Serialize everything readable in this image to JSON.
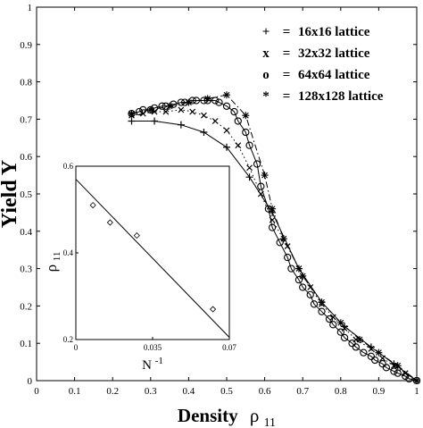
{
  "chart_data": [
    {
      "type": "line",
      "xlabel": "Density",
      "xlabel_sub": "ρ",
      "xlabel_subscript": "11",
      "ylabel": "Yield  Y",
      "xlim": [
        0,
        1
      ],
      "ylim": [
        0,
        1
      ],
      "x_ticks": [
        "0",
        "0.1",
        "0.2",
        "0.3",
        "0.4",
        "0.5",
        "0.6",
        "0.7",
        "0.8",
        "0.9",
        "1"
      ],
      "y_ticks": [
        "0",
        "0.1",
        "0.2",
        "0.3",
        "0.4",
        "0.5",
        "0.6",
        "0.7",
        "0.8",
        "0.9",
        "1"
      ],
      "legend_position": "top-right",
      "series": [
        {
          "name": "16x16 lattice",
          "legend_symbol": "+",
          "legend_eq": "=",
          "marker": "plus",
          "line": "solid",
          "x": [
            0.25,
            0.31,
            0.38,
            0.44,
            0.5,
            0.56,
            0.62,
            0.69,
            0.75,
            0.81,
            0.88,
            0.94,
            1.0
          ],
          "y": [
            0.695,
            0.695,
            0.685,
            0.665,
            0.625,
            0.545,
            0.45,
            0.3,
            0.21,
            0.145,
            0.09,
            0.045,
            0.0
          ]
        },
        {
          "name": "32x32 lattice",
          "legend_symbol": "x",
          "legend_eq": "=",
          "marker": "x",
          "line": "dotted",
          "x": [
            0.25,
            0.28,
            0.31,
            0.34,
            0.38,
            0.41,
            0.44,
            0.47,
            0.5,
            0.53,
            0.56,
            0.59,
            0.62,
            0.66,
            0.69,
            0.72,
            0.75,
            0.78,
            0.81,
            0.84,
            0.88,
            0.91,
            0.94,
            0.97,
            1.0
          ],
          "y": [
            0.71,
            0.715,
            0.72,
            0.72,
            0.725,
            0.72,
            0.71,
            0.695,
            0.67,
            0.63,
            0.57,
            0.5,
            0.43,
            0.36,
            0.3,
            0.25,
            0.205,
            0.17,
            0.14,
            0.11,
            0.085,
            0.06,
            0.04,
            0.02,
            0.0
          ]
        },
        {
          "name": "64x64 lattice",
          "legend_symbol": "o",
          "legend_eq": "=",
          "marker": "circle",
          "line": "solid",
          "x": [
            0.25,
            0.27,
            0.28,
            0.3,
            0.31,
            0.33,
            0.34,
            0.36,
            0.38,
            0.39,
            0.41,
            0.42,
            0.44,
            0.45,
            0.47,
            0.48,
            0.5,
            0.52,
            0.53,
            0.55,
            0.56,
            0.58,
            0.59,
            0.61,
            0.62,
            0.64,
            0.66,
            0.67,
            0.69,
            0.7,
            0.72,
            0.73,
            0.75,
            0.77,
            0.78,
            0.8,
            0.81,
            0.83,
            0.84,
            0.86,
            0.88,
            0.89,
            0.91,
            0.92,
            0.94,
            0.95,
            0.97,
            0.98,
            1.0
          ],
          "y": [
            0.715,
            0.72,
            0.725,
            0.725,
            0.73,
            0.735,
            0.735,
            0.74,
            0.745,
            0.745,
            0.75,
            0.75,
            0.75,
            0.75,
            0.75,
            0.745,
            0.735,
            0.72,
            0.695,
            0.665,
            0.63,
            0.58,
            0.52,
            0.46,
            0.41,
            0.37,
            0.33,
            0.3,
            0.27,
            0.25,
            0.23,
            0.205,
            0.185,
            0.165,
            0.15,
            0.13,
            0.115,
            0.1,
            0.09,
            0.075,
            0.065,
            0.055,
            0.045,
            0.035,
            0.025,
            0.02,
            0.012,
            0.005,
            0.0
          ]
        },
        {
          "name": "128x128 lattice",
          "legend_symbol": "*",
          "legend_eq": "=",
          "marker": "star",
          "line": "dashdot",
          "x": [
            0.25,
            0.3,
            0.35,
            0.4,
            0.45,
            0.5,
            0.55,
            0.6,
            0.62,
            0.65,
            0.7,
            0.75,
            0.8,
            0.85,
            0.9,
            0.95,
            1.0
          ],
          "y": [
            0.715,
            0.725,
            0.735,
            0.745,
            0.755,
            0.765,
            0.71,
            0.55,
            0.46,
            0.38,
            0.28,
            0.21,
            0.155,
            0.11,
            0.075,
            0.04,
            0.0
          ]
        }
      ]
    },
    {
      "type": "scatter",
      "xlabel": "N",
      "xlabel_superscript": "-1",
      "ylabel": "ρ",
      "ylabel_subscript": "11",
      "xlim": [
        0,
        0.07
      ],
      "ylim": [
        0.2,
        0.6
      ],
      "x_ticks": [
        "0",
        "0.035",
        "0.07"
      ],
      "y_ticks": [
        "0.2",
        "0.4",
        "0.6"
      ],
      "series": [
        {
          "marker": "diamond",
          "x": [
            0.0078,
            0.0156,
            0.0278,
            0.0625
          ],
          "y": [
            0.51,
            0.47,
            0.44,
            0.27
          ]
        }
      ],
      "fit_line": {
        "x": [
          0.0,
          0.07
        ],
        "y": [
          0.57,
          0.205
        ]
      }
    }
  ]
}
